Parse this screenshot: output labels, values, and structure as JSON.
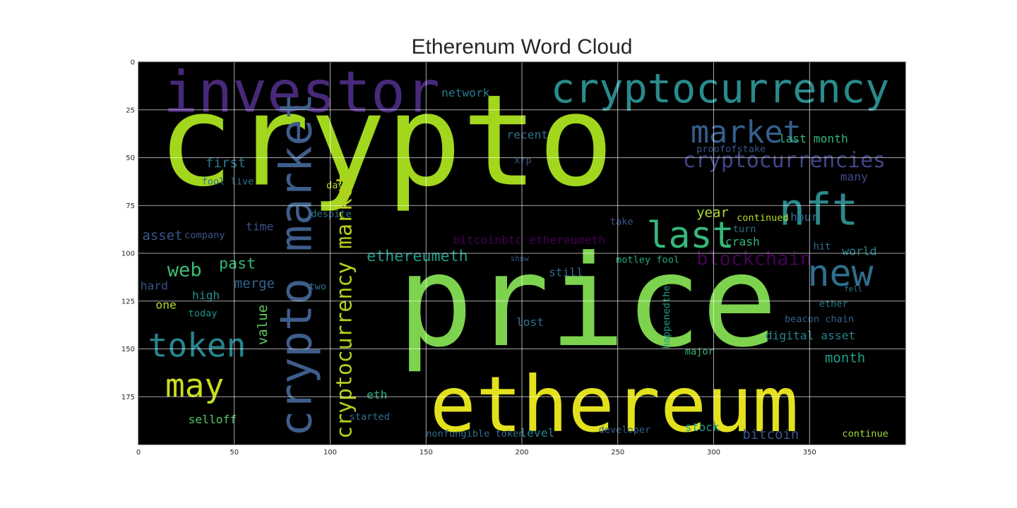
{
  "chart_data": {
    "type": "image",
    "title": "Etherenum Word Cloud",
    "background": "#000000",
    "xlim": [
      0,
      400
    ],
    "ylim": [
      200,
      0
    ],
    "xticks": [
      0,
      50,
      100,
      150,
      200,
      250,
      300,
      350
    ],
    "yticks": [
      0,
      25,
      50,
      75,
      100,
      125,
      150,
      175
    ],
    "grid": true,
    "words": [
      {
        "text": "crypto",
        "x": 10,
        "y": 64,
        "size": 66,
        "color": "#a2d71d"
      },
      {
        "text": "price",
        "x": 135,
        "y": 148,
        "size": 66,
        "color": "#7ed34e"
      },
      {
        "text": "ethereum",
        "x": 152,
        "y": 193,
        "size": 40,
        "color": "#e3e11d"
      },
      {
        "text": "investor",
        "x": 13,
        "y": 26,
        "size": 30,
        "color": "#482979"
      },
      {
        "text": "cryptocurrency",
        "x": 215,
        "y": 21,
        "size": 21,
        "color": "#2a8a8c"
      },
      {
        "text": "crypto market",
        "x": 90,
        "y": 196,
        "size": 23,
        "color": "#3e5e8b",
        "rotate": -90
      },
      {
        "text": "cryptocurrency market",
        "x": 111,
        "y": 197,
        "size": 11,
        "color": "#b8cf1a",
        "rotate": -90
      },
      {
        "text": "market",
        "x": 288,
        "y": 42,
        "size": 16,
        "color": "#355f8d"
      },
      {
        "text": "cryptocurrencies",
        "x": 284,
        "y": 55,
        "size": 11,
        "color": "#414487"
      },
      {
        "text": "nft",
        "x": 334,
        "y": 85,
        "size": 23,
        "color": "#2b8a8c"
      },
      {
        "text": "last",
        "x": 265,
        "y": 97,
        "size": 19,
        "color": "#35b779"
      },
      {
        "text": "new",
        "x": 349,
        "y": 117,
        "size": 19,
        "color": "#2f6f8e"
      },
      {
        "text": "blockchain",
        "x": 291,
        "y": 106,
        "size": 10,
        "color": "#440154"
      },
      {
        "text": "token",
        "x": 5,
        "y": 154,
        "size": 17,
        "color": "#25858e"
      },
      {
        "text": "may",
        "x": 14,
        "y": 175,
        "size": 17,
        "color": "#c9dd1e"
      },
      {
        "text": "web",
        "x": 15,
        "y": 112,
        "size": 10,
        "color": "#3cbb75"
      },
      {
        "text": "past",
        "x": 42,
        "y": 108,
        "size": 8,
        "color": "#35b779"
      },
      {
        "text": "first",
        "x": 35,
        "y": 55,
        "size": 7,
        "color": "#2a788e"
      },
      {
        "text": "asset",
        "x": 2,
        "y": 93,
        "size": 7,
        "color": "#39568c"
      },
      {
        "text": "merge",
        "x": 50,
        "y": 118,
        "size": 7,
        "color": "#33638d"
      },
      {
        "text": "hard",
        "x": 1,
        "y": 119,
        "size": 6,
        "color": "#3b528b"
      },
      {
        "text": "high",
        "x": 28,
        "y": 124,
        "size": 6,
        "color": "#238a8d"
      },
      {
        "text": "one",
        "x": 9,
        "y": 129,
        "size": 6,
        "color": "#b5de2b"
      },
      {
        "text": "today",
        "x": 26,
        "y": 133,
        "size": 5,
        "color": "#21918c"
      },
      {
        "text": "time",
        "x": 56,
        "y": 88,
        "size": 6,
        "color": "#3b528b"
      },
      {
        "text": "company",
        "x": 24,
        "y": 92,
        "size": 5,
        "color": "#39568c"
      },
      {
        "text": "fool live",
        "x": 33,
        "y": 64,
        "size": 5,
        "color": "#2d708e"
      },
      {
        "text": "despite",
        "x": 90,
        "y": 81,
        "size": 5,
        "color": "#29788e"
      },
      {
        "text": "day",
        "x": 98,
        "y": 66,
        "size": 5,
        "color": "#b5de2b"
      },
      {
        "text": "value",
        "x": 67,
        "y": 148,
        "size": 7,
        "color": "#5ec962",
        "rotate": -90
      },
      {
        "text": "selloff",
        "x": 26,
        "y": 189,
        "size": 6,
        "color": "#56c667"
      },
      {
        "text": "ethereumeth",
        "x": 119,
        "y": 104,
        "size": 8,
        "color": "#1f9e89"
      },
      {
        "text": "bitcoinbtc ethereumeth",
        "x": 164,
        "y": 95,
        "size": 6,
        "color": "#440154"
      },
      {
        "text": "network",
        "x": 158,
        "y": 18,
        "size": 6,
        "color": "#2a788e"
      },
      {
        "text": "recent",
        "x": 192,
        "y": 40,
        "size": 6,
        "color": "#2d708e"
      },
      {
        "text": "last month",
        "x": 334,
        "y": 42,
        "size": 6,
        "color": "#35b779"
      },
      {
        "text": "proofofstake",
        "x": 291,
        "y": 47,
        "size": 5,
        "color": "#3b528b"
      },
      {
        "text": "many",
        "x": 366,
        "y": 62,
        "size": 6,
        "color": "#3e4a89"
      },
      {
        "text": "hour",
        "x": 340,
        "y": 83,
        "size": 6,
        "color": "#31688e"
      },
      {
        "text": "year",
        "x": 291,
        "y": 81,
        "size": 7,
        "color": "#addc30"
      },
      {
        "text": "continued",
        "x": 312,
        "y": 83,
        "size": 5,
        "color": "#b5de2b"
      },
      {
        "text": "turn",
        "x": 310,
        "y": 89,
        "size": 5,
        "color": "#2d708e"
      },
      {
        "text": "crash",
        "x": 306,
        "y": 96,
        "size": 6,
        "color": "#35b779"
      },
      {
        "text": "hit",
        "x": 352,
        "y": 98,
        "size": 5,
        "color": "#2a788e"
      },
      {
        "text": "world",
        "x": 367,
        "y": 101,
        "size": 6,
        "color": "#26828e"
      },
      {
        "text": "motley fool",
        "x": 249,
        "y": 105,
        "size": 5,
        "color": "#22a884"
      },
      {
        "text": "still",
        "x": 214,
        "y": 112,
        "size": 6,
        "color": "#31688e"
      },
      {
        "text": "show",
        "x": 194,
        "y": 104,
        "size": 4,
        "color": "#3b528b"
      },
      {
        "text": "take",
        "x": 246,
        "y": 85,
        "size": 5,
        "color": "#3b528b"
      },
      {
        "text": "lost",
        "x": 197,
        "y": 138,
        "size": 6,
        "color": "#2d708e"
      },
      {
        "text": "beacon chain",
        "x": 337,
        "y": 136,
        "size": 5,
        "color": "#33638d"
      },
      {
        "text": "digital asset",
        "x": 327,
        "y": 145,
        "size": 6,
        "color": "#26828e"
      },
      {
        "text": "major",
        "x": 285,
        "y": 153,
        "size": 5,
        "color": "#35b779"
      },
      {
        "text": "month",
        "x": 358,
        "y": 157,
        "size": 7,
        "color": "#1f9e89"
      },
      {
        "text": "ether",
        "x": 355,
        "y": 128,
        "size": 5,
        "color": "#2a788e"
      },
      {
        "text": "eth",
        "x": 119,
        "y": 176,
        "size": 6,
        "color": "#29af7f"
      },
      {
        "text": "started",
        "x": 110,
        "y": 187,
        "size": 5,
        "color": "#2d708e"
      },
      {
        "text": "nonfungible token",
        "x": 150,
        "y": 196,
        "size": 5,
        "color": "#2d708e"
      },
      {
        "text": "level",
        "x": 199,
        "y": 196,
        "size": 6,
        "color": "#26828e"
      },
      {
        "text": "developer",
        "x": 240,
        "y": 194,
        "size": 5,
        "color": "#33638d"
      },
      {
        "text": "stock",
        "x": 285,
        "y": 193,
        "size": 6,
        "color": "#1f9e89"
      },
      {
        "text": "bitcoin",
        "x": 315,
        "y": 197,
        "size": 7,
        "color": "#39568c"
      },
      {
        "text": "continue",
        "x": 367,
        "y": 196,
        "size": 5,
        "color": "#a0da39"
      },
      {
        "text": "happenedthe",
        "x": 277,
        "y": 150,
        "size": 5,
        "color": "#1f9e89",
        "rotate": -90
      },
      {
        "text": "two",
        "x": 89,
        "y": 119,
        "size": 5,
        "color": "#2d708e"
      },
      {
        "text": "xrp",
        "x": 196,
        "y": 53,
        "size": 5,
        "color": "#3b528b"
      },
      {
        "text": "fell",
        "x": 368,
        "y": 120,
        "size": 4,
        "color": "#2a788e"
      }
    ]
  }
}
